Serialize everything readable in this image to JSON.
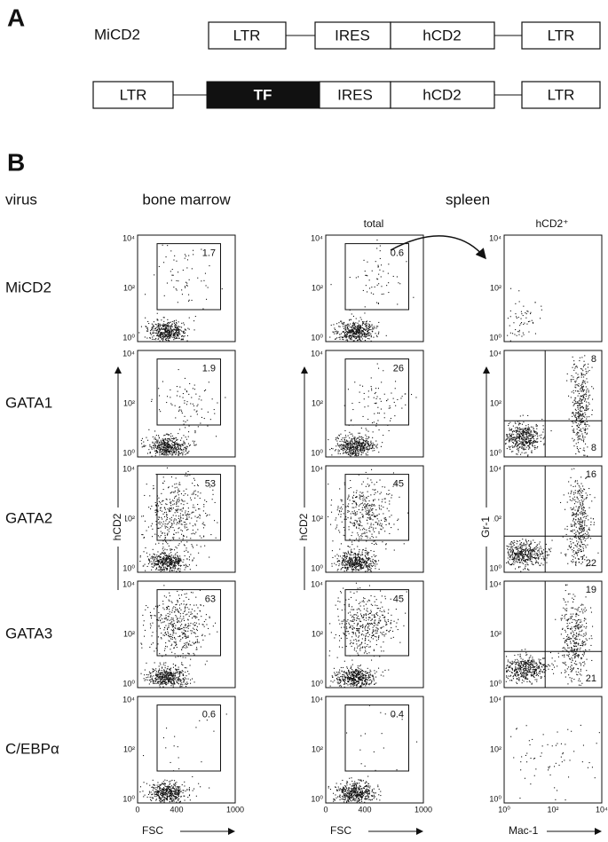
{
  "panel_a": {
    "label": "A",
    "constructs": [
      {
        "name": "MiCD2",
        "elements": [
          "LTR",
          "IRES",
          "hCD2",
          "LTR"
        ]
      },
      {
        "elements": [
          "LTR",
          "TF",
          "IRES",
          "hCD2",
          "LTR"
        ]
      }
    ]
  },
  "panel_b": {
    "label": "B",
    "virus_header": "virus",
    "bone_marrow_header": "bone marrow",
    "spleen_header": "spleen",
    "spleen_subheaders": [
      "total",
      "hCD2⁺"
    ],
    "rows": [
      {
        "virus": "MiCD2",
        "bone_marrow": 1.7,
        "spleen_total": 0.6
      },
      {
        "virus": "GATA1",
        "bone_marrow": 1.9,
        "spleen_total": 26,
        "gr1_mac1": [
          8,
          8
        ]
      },
      {
        "virus": "GATA2",
        "bone_marrow": 53,
        "spleen_total": 45,
        "gr1_mac1": [
          16,
          22
        ]
      },
      {
        "virus": "GATA3",
        "bone_marrow": 63,
        "spleen_total": 45,
        "gr1_mac1": [
          19,
          21
        ]
      },
      {
        "virus": "C/EBPα",
        "bone_marrow": 0.6,
        "spleen_total": 0.4
      }
    ],
    "log_ticks": [
      "10⁰",
      "10²",
      "10⁴"
    ],
    "fsc_ticks": [
      0,
      400,
      1000
    ],
    "axis_labels": {
      "hcd2": "hCD2",
      "fsc": "FSC",
      "gr1": "Gr-1",
      "mac1": "Mac-1"
    }
  }
}
